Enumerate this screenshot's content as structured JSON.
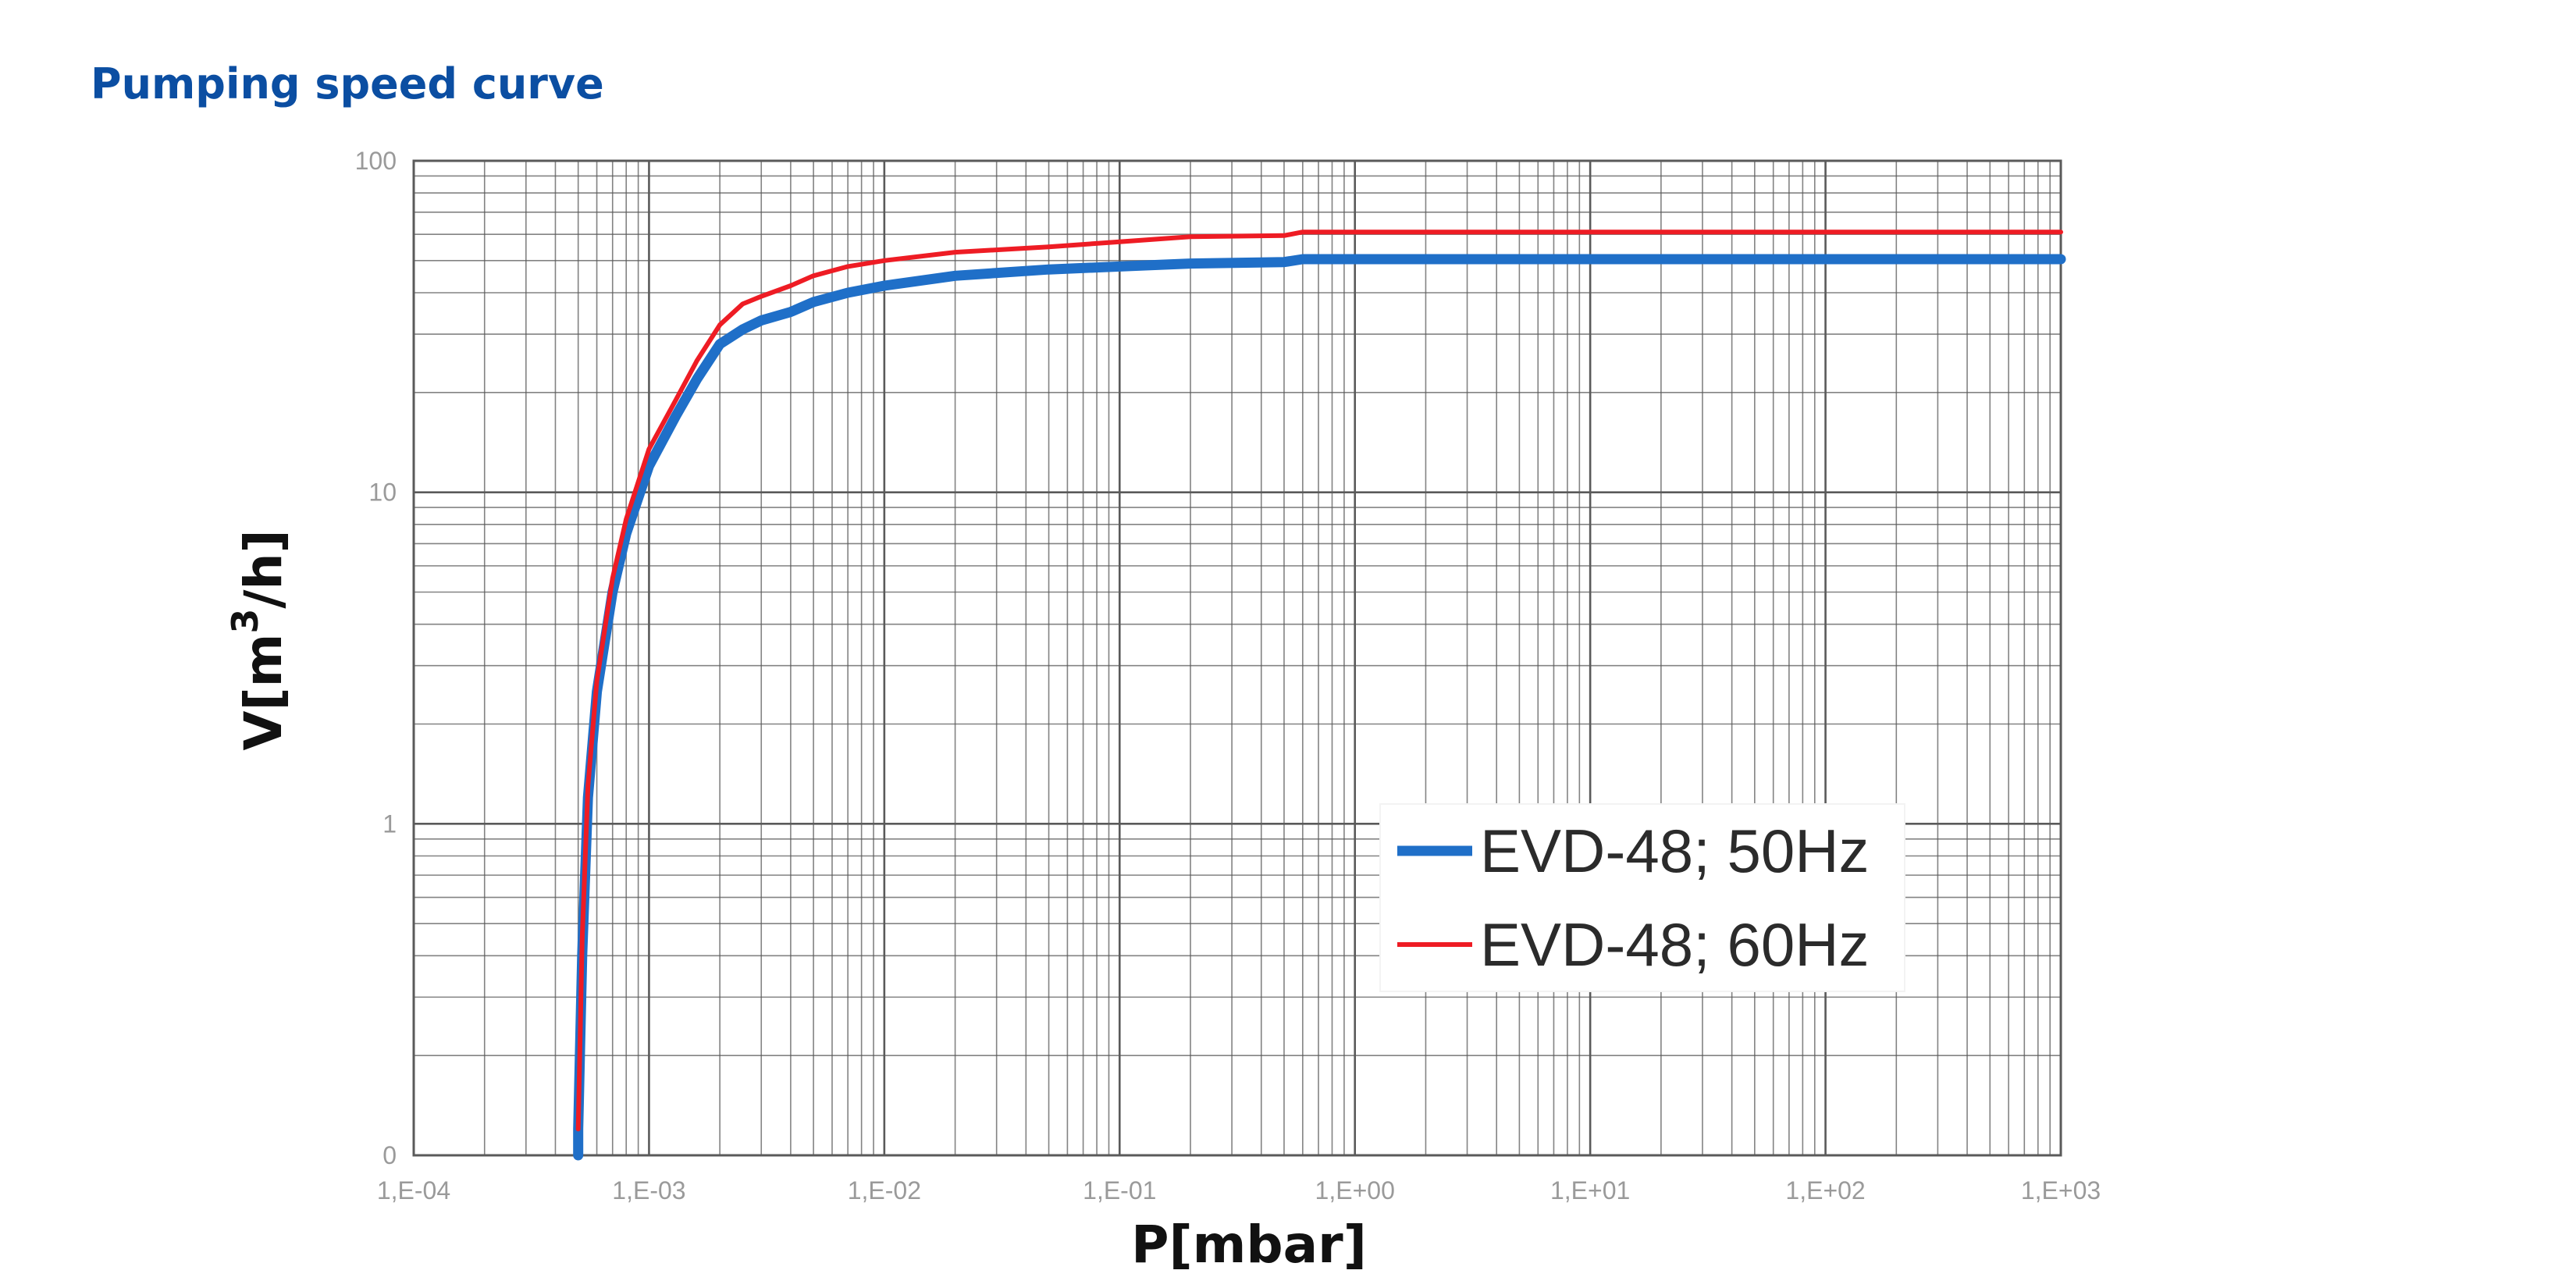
{
  "page": {
    "title": "Pumping speed curve"
  },
  "colors": {
    "title": "#0b4ea2",
    "series_50hz": "#1f6fc8",
    "series_60hz": "#ee1c24",
    "grid": "#5a5a5a"
  },
  "chart_data": {
    "type": "line",
    "title": "",
    "xlabel": "P[mbar]",
    "ylabel_main": "V[m",
    "ylabel_sup": "3",
    "ylabel_tail": "/h]",
    "x_scale": "log",
    "y_scale": "log",
    "xlim": [
      0.0001,
      1000
    ],
    "ylim": [
      0.1,
      100
    ],
    "x_ticks": [
      {
        "value": 0.0001,
        "label": "1,E-04"
      },
      {
        "value": 0.001,
        "label": "1,E-03"
      },
      {
        "value": 0.01,
        "label": "1,E-02"
      },
      {
        "value": 0.1,
        "label": "1,E-01"
      },
      {
        "value": 1,
        "label": "1,E+00"
      },
      {
        "value": 10,
        "label": "1,E+01"
      },
      {
        "value": 100,
        "label": "1,E+02"
      },
      {
        "value": 1000,
        "label": "1,E+03"
      }
    ],
    "y_ticks": [
      {
        "value": 0.1,
        "label": "0"
      },
      {
        "value": 1,
        "label": "1"
      },
      {
        "value": 10,
        "label": "10"
      },
      {
        "value": 100,
        "label": "100"
      }
    ],
    "grid": true,
    "legend_position": "bottom-right",
    "series": [
      {
        "name": "EVD-48; 50Hz",
        "color": "#1f6fc8",
        "x": [
          0.0005,
          0.0005,
          0.00052,
          0.00055,
          0.0006,
          0.0007,
          0.0008,
          0.001,
          0.0013,
          0.0016,
          0.002,
          0.0025,
          0.003,
          0.004,
          0.005,
          0.007,
          0.01,
          0.02,
          0.05,
          0.1,
          0.2,
          0.5,
          0.6,
          1,
          10,
          100,
          1000
        ],
        "y": [
          0.1,
          0.12,
          0.4,
          1.2,
          2.5,
          5.0,
          7.5,
          12,
          17,
          22,
          28,
          31,
          33,
          35,
          37.5,
          40,
          42,
          45,
          47,
          48,
          49,
          49.5,
          50.5,
          50.5,
          50.5,
          50.5,
          50.5
        ]
      },
      {
        "name": "EVD-48; 60Hz",
        "color": "#ee1c24",
        "x": [
          0.0005,
          0.00052,
          0.00055,
          0.0006,
          0.0007,
          0.0008,
          0.001,
          0.0013,
          0.0016,
          0.002,
          0.0025,
          0.003,
          0.004,
          0.005,
          0.007,
          0.01,
          0.02,
          0.05,
          0.1,
          0.2,
          0.5,
          0.6,
          1,
          10,
          100,
          1000
        ],
        "y": [
          0.12,
          0.45,
          1.3,
          2.7,
          5.5,
          8.3,
          13.5,
          19,
          25,
          32,
          37,
          39,
          42,
          45,
          48,
          50,
          53,
          55,
          57,
          59,
          59.5,
          61,
          61,
          61,
          61,
          61
        ]
      }
    ]
  }
}
